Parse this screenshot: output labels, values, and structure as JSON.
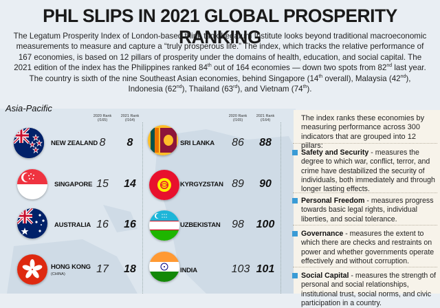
{
  "title": "PHL SLIPS IN 2021 GLOBAL PROSPERITY RANKING",
  "intro": {
    "p1": "The Legatum Prosperity Index of London-based think tank Legatum Institute looks beyond traditional macroeconomic measurements to measure and capture a “truly prosperous life.” The index, which tracks the relative performance of 167 economies, is based on 12 pillars of prosperity under the domains of health, education, and social capital. The 2021 edition of the index has the Philippines ranked 84",
    "sup1": "th",
    "p2": " out of 164 economies — down two spots from 82",
    "sup2": "nd",
    "p3": " last year. The country is sixth of the nine Southeast Asian economies, behind Singapore (14",
    "sup3": "th",
    "p4": " overall), Malaysia (42",
    "sup4": "nd",
    "p5": "), Indonesia (62",
    "sup5": "nd",
    "p6": "), Thailand (63",
    "sup6": "rd",
    "p7": "), and Vietnam (74",
    "sup7": "th",
    "p8": ")."
  },
  "region_label": "Asia-Pacific",
  "column_headers": {
    "rank2020": "2020 Rank (/165)",
    "rank2021": "2021 Rank (/164)"
  },
  "left_countries": [
    {
      "name": "NEW ZEALAND",
      "sub": "",
      "rank2020": "8",
      "rank2021": "8",
      "flag": "new-zealand"
    },
    {
      "name": "SINGAPORE",
      "sub": "",
      "rank2020": "15",
      "rank2021": "14",
      "flag": "singapore"
    },
    {
      "name": "AUSTRALIA",
      "sub": "",
      "rank2020": "16",
      "rank2021": "16",
      "flag": "australia"
    },
    {
      "name": "HONG KONG",
      "sub": "(CHINA)",
      "rank2020": "17",
      "rank2021": "18",
      "flag": "hong-kong"
    }
  ],
  "right_countries": [
    {
      "name": "SRI LANKA",
      "sub": "",
      "rank2020": "86",
      "rank2021": "88",
      "flag": "sri-lanka"
    },
    {
      "name": "KYRGYZSTAN",
      "sub": "",
      "rank2020": "89",
      "rank2021": "90",
      "flag": "kyrgyzstan"
    },
    {
      "name": "UZBEKISTAN",
      "sub": "",
      "rank2020": "98",
      "rank2021": "100",
      "flag": "uzbekistan"
    },
    {
      "name": "INDIA",
      "sub": "",
      "rank2020": "103",
      "rank2021": "101",
      "flag": "india"
    }
  ],
  "panel": {
    "intro": "The index ranks these economies by measuring performance across 300 indicators that are grouped into 12 pillars:",
    "pillars": [
      {
        "name": "Safety and Security",
        "desc": " - measures the degree to which war, conflict, terror, and crime have destabilized the security of individuals, both immediately and through longer lasting effects."
      },
      {
        "name": "Personal Freedom",
        "desc": " - measures progress towards basic legal rights, individual liberties, and social tolerance."
      },
      {
        "name": "Governance",
        "desc": " - measures the extent to which there are checks and restraints on power and whether governments operate effectively and without corruption."
      },
      {
        "name": "Social Capital",
        "desc": " - measures the strength of personal and social relationships, institutional trust, social norms, and civic participation in a country."
      }
    ]
  },
  "colors": {
    "accent": "#3a9bd5",
    "panel_bg": "#f7f3ea",
    "map_bg": "#dde6ee"
  }
}
